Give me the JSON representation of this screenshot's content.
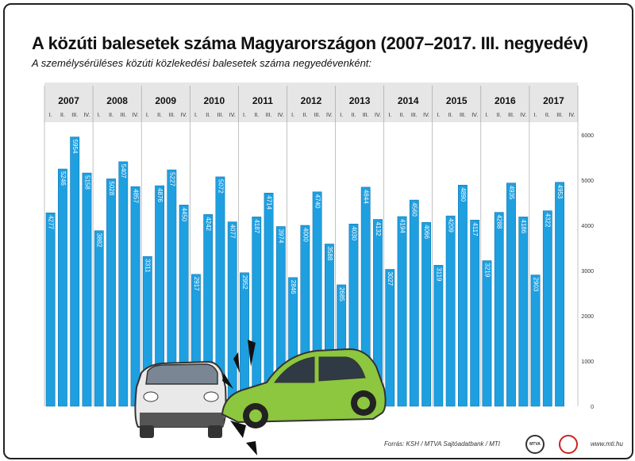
{
  "title": "A közúti balesetek száma Magyarországon (2007–2017. III. negyedév)",
  "subtitle": "A személysérüléses közúti közlekedési balesetek száma negyedévenként:",
  "source": "Forrás: KSH / MTVA Sajtóadatbank / MTI",
  "website": "www.mti.hu",
  "logos": {
    "mtva": "MTVA"
  },
  "colors": {
    "bar": "#1e9fe0",
    "bar_edge": "#0d6fa8",
    "header": "#e6e6e6",
    "divider": "#999999"
  },
  "chart_data": {
    "type": "bar",
    "title": "A közúti balesetek száma Magyarországon (2007–2017. III. negyedév)",
    "subtitle": "A személysérüléses közúti közlekedési balesetek száma negyedévenként:",
    "years": [
      "2007",
      "2008",
      "2009",
      "2010",
      "2011",
      "2012",
      "2013",
      "2014",
      "2015",
      "2016",
      "2017"
    ],
    "quarters": [
      "I.",
      "II.",
      "III.",
      "IV."
    ],
    "values": [
      4277,
      5246,
      5954,
      5158,
      3882,
      5028,
      5407,
      4857,
      3311,
      4876,
      5227,
      4450,
      2917,
      4242,
      5072,
      4077,
      2952,
      4187,
      4714,
      3974,
      2846,
      4000,
      4740,
      3588,
      2685,
      4030,
      4844,
      4132,
      3027,
      4194,
      4560,
      4066,
      3119,
      4209,
      4890,
      4117,
      3219,
      4288,
      4935,
      4186,
      2903,
      4322,
      4953
    ],
    "y_ticks": [
      "0",
      "1000",
      "2000",
      "3000",
      "4000",
      "5000",
      "6000"
    ],
    "ylim": [
      0,
      6000
    ],
    "grid": false,
    "legend": "none"
  }
}
